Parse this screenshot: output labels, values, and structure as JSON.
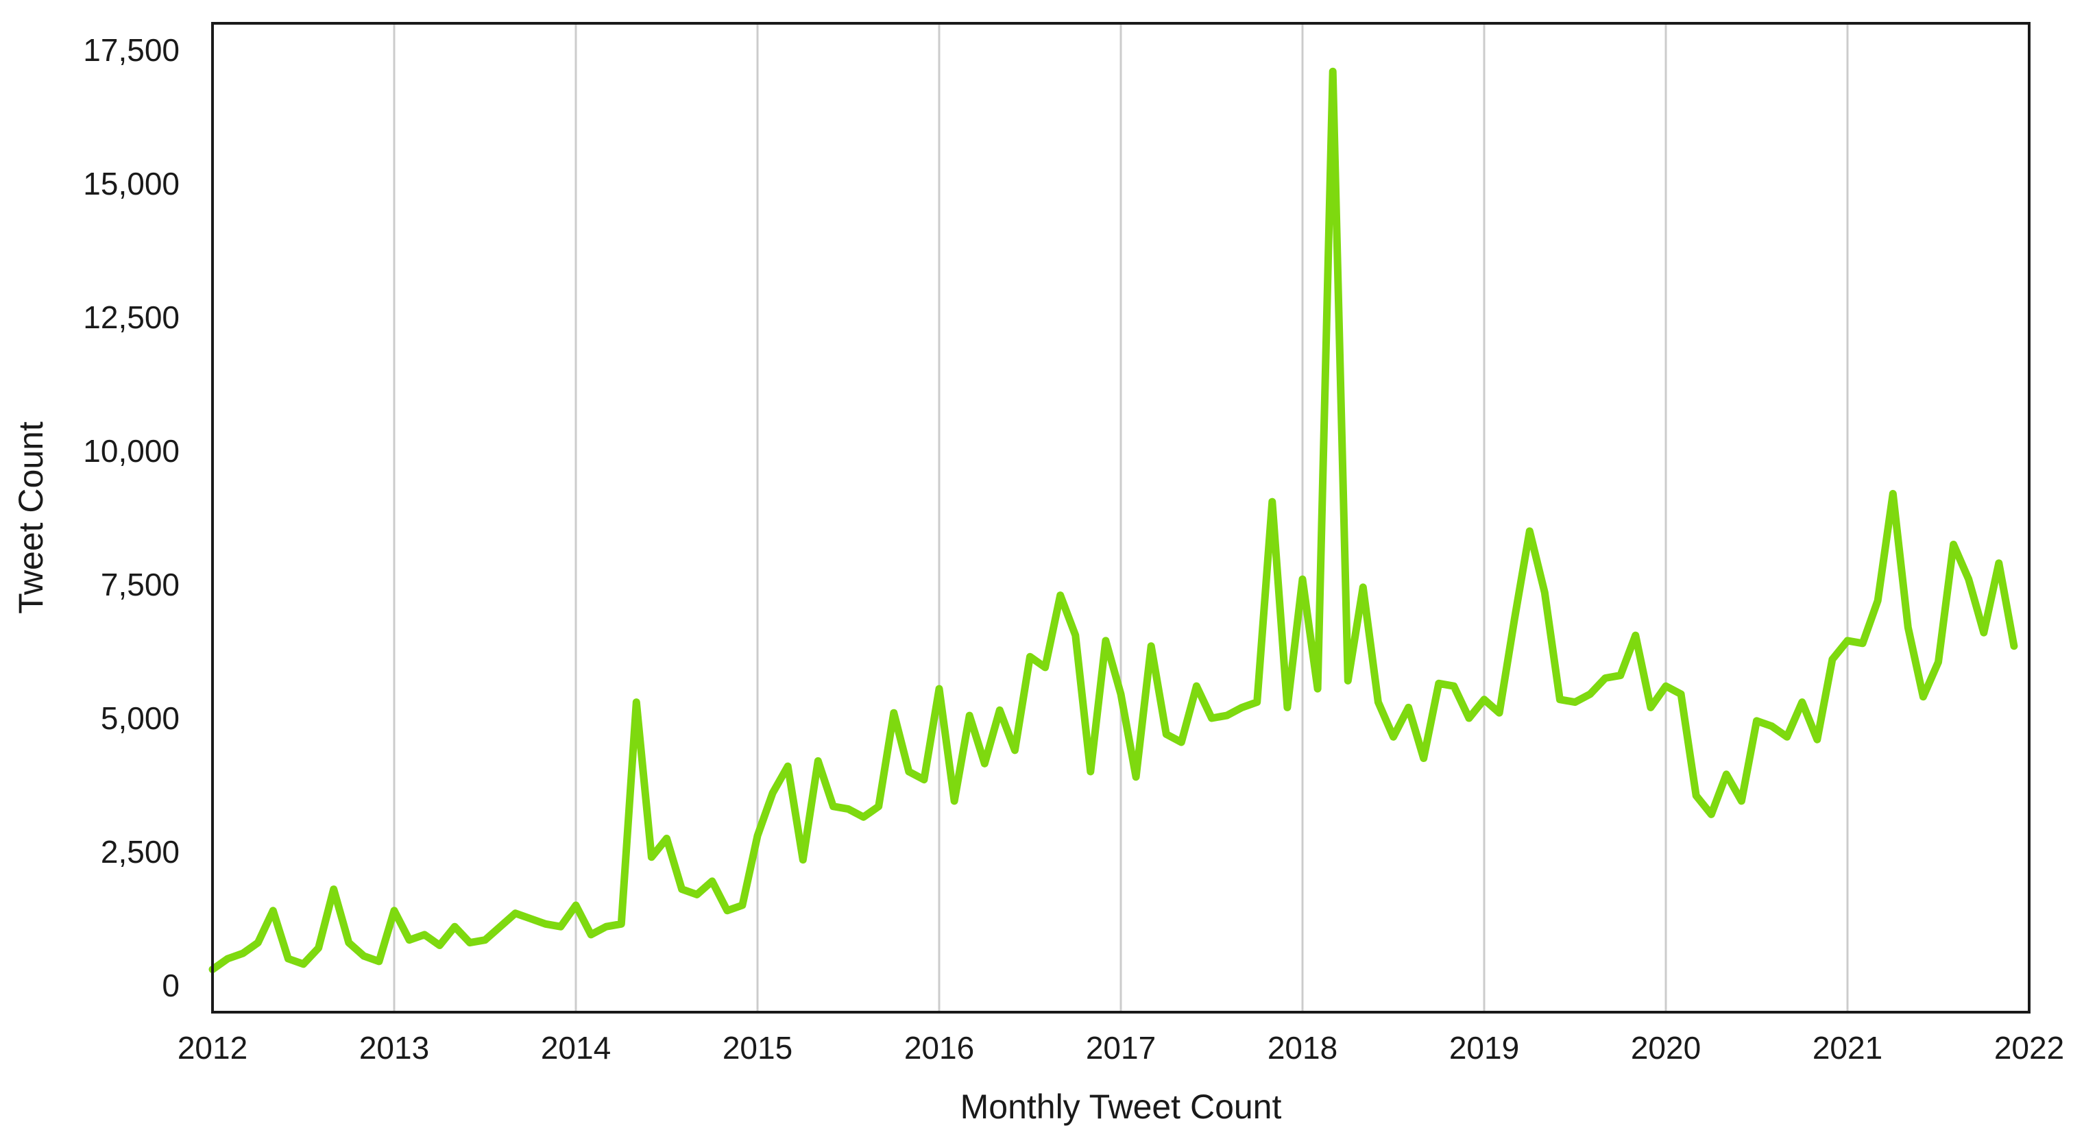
{
  "chart_data": {
    "type": "line",
    "title": "",
    "xlabel": "Monthly Tweet Count",
    "ylabel": "Tweet Count",
    "x_ticks": [
      "2012",
      "2013",
      "2014",
      "2015",
      "2016",
      "2017",
      "2018",
      "2019",
      "2020",
      "2021",
      "2022"
    ],
    "y_ticks": [
      0,
      2500,
      5000,
      7500,
      10000,
      12500,
      15000,
      17500
    ],
    "y_tick_labels": [
      "0",
      "2,500",
      "5,000",
      "7,500",
      "10,000",
      "12,500",
      "15,000",
      "17,500"
    ],
    "xlim": [
      "2012-01",
      "2022-01"
    ],
    "ylim": [
      -500,
      18000
    ],
    "grid": "vertical",
    "line_color": "#7ed90f",
    "series": [
      {
        "x": [
          "2012-01",
          "2012-02",
          "2012-03",
          "2012-04",
          "2012-05",
          "2012-06",
          "2012-07",
          "2012-08",
          "2012-09",
          "2012-10",
          "2012-11",
          "2012-12",
          "2013-01",
          "2013-02",
          "2013-03",
          "2013-04",
          "2013-05",
          "2013-06",
          "2013-07",
          "2013-08",
          "2013-09",
          "2013-10",
          "2013-11",
          "2013-12",
          "2014-01",
          "2014-02",
          "2014-03",
          "2014-04",
          "2014-05",
          "2014-06",
          "2014-07",
          "2014-08",
          "2014-09",
          "2014-10",
          "2014-11",
          "2014-12",
          "2015-01",
          "2015-02",
          "2015-03",
          "2015-04",
          "2015-05",
          "2015-06",
          "2015-07",
          "2015-08",
          "2015-09",
          "2015-10",
          "2015-11",
          "2015-12",
          "2016-01",
          "2016-02",
          "2016-03",
          "2016-04",
          "2016-05",
          "2016-06",
          "2016-07",
          "2016-08",
          "2016-09",
          "2016-10",
          "2016-11",
          "2016-12",
          "2017-01",
          "2017-02",
          "2017-03",
          "2017-04",
          "2017-05",
          "2017-06",
          "2017-07",
          "2017-08",
          "2017-09",
          "2017-10",
          "2017-11",
          "2017-12",
          "2018-01",
          "2018-02",
          "2018-03",
          "2018-04",
          "2018-05",
          "2018-06",
          "2018-07",
          "2018-08",
          "2018-09",
          "2018-10",
          "2018-11",
          "2018-12",
          "2019-01",
          "2019-02",
          "2019-03",
          "2019-04",
          "2019-05",
          "2019-06",
          "2019-07",
          "2019-08",
          "2019-09",
          "2019-10",
          "2019-11",
          "2019-12",
          "2020-01",
          "2020-02",
          "2020-03",
          "2020-04",
          "2020-05",
          "2020-06",
          "2020-07",
          "2020-08",
          "2020-09",
          "2020-10",
          "2020-11",
          "2020-12",
          "2021-01",
          "2021-02",
          "2021-03",
          "2021-04",
          "2021-05",
          "2021-06",
          "2021-07",
          "2021-08",
          "2021-09",
          "2021-10",
          "2021-11",
          "2021-12"
        ],
        "values": [
          300,
          500,
          600,
          800,
          1400,
          500,
          400,
          700,
          1800,
          800,
          550,
          450,
          1400,
          850,
          950,
          750,
          1100,
          800,
          850,
          1100,
          1350,
          1250,
          1150,
          1100,
          1500,
          950,
          1100,
          1150,
          5300,
          2400,
          2750,
          1800,
          1700,
          1950,
          1400,
          1500,
          2800,
          3600,
          4100,
          2350,
          4200,
          3350,
          3300,
          3150,
          3350,
          5100,
          4000,
          3850,
          5550,
          3450,
          5050,
          4150,
          5150,
          4400,
          6150,
          5950,
          7300,
          6550,
          4000,
          6450,
          5450,
          3900,
          6350,
          4700,
          4550,
          5600,
          5000,
          5050,
          5200,
          5300,
          9050,
          5200,
          7600,
          5550,
          17100,
          5700,
          7450,
          5300,
          4650,
          5200,
          4250,
          5650,
          5600,
          5000,
          5350,
          5100,
          6850,
          8500,
          7350,
          5350,
          5300,
          5450,
          5750,
          5800,
          6550,
          5200,
          5600,
          5450,
          3550,
          3200,
          3950,
          3450,
          4950,
          4850,
          4650,
          5300,
          4600,
          6100,
          6450,
          6400,
          7200,
          9200,
          6700,
          5400,
          6050,
          8250,
          7600,
          6600,
          7900,
          6350
        ]
      }
    ]
  }
}
